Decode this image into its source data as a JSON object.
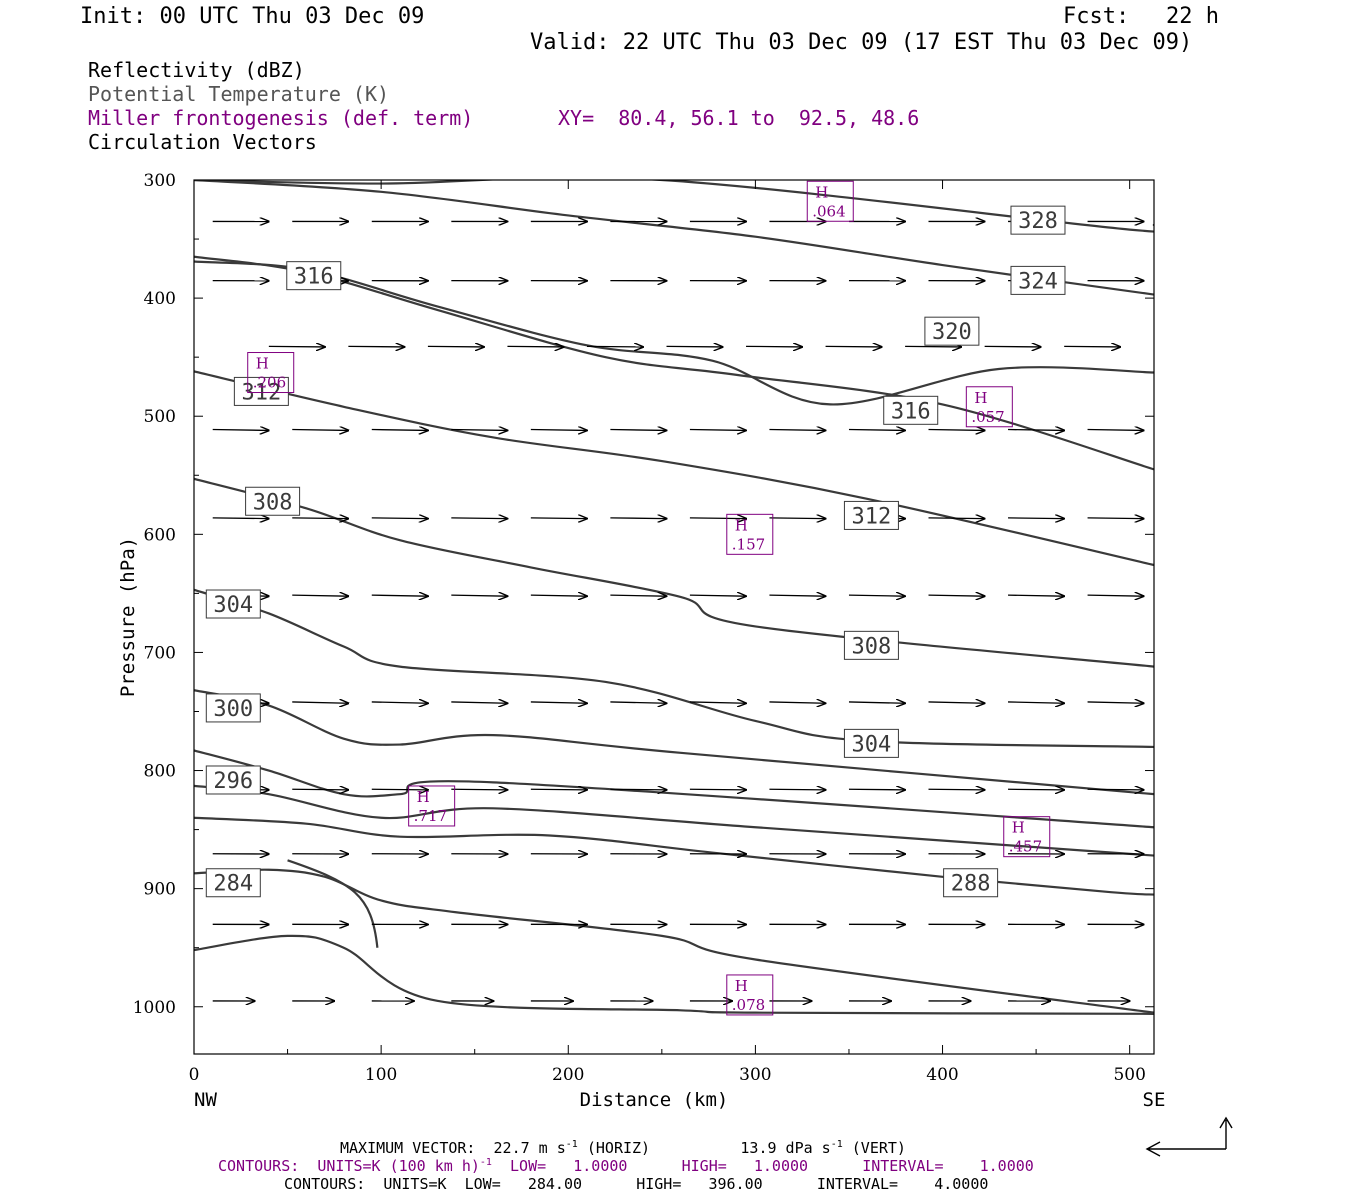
{
  "header": {
    "init": "Init: 00 UTC Thu 03 Dec 09",
    "fcst_label": "Fcst:",
    "fcst_value": "22 h",
    "valid": "Valid: 22 UTC Thu 03 Dec 09 (17 EST Thu 03 Dec 09)"
  },
  "legend": {
    "line1": "Reflectivity (dBZ)",
    "line2": "Potential Temperature (K)",
    "line3": "Miller frontogenesis (def. term)",
    "xy": "XY=  80.4, 56.1 to  92.5, 48.6",
    "line4": "Circulation Vectors"
  },
  "footer": {
    "max_vector_label": "MAXIMUM VECTOR:",
    "max_horiz": "22.7 m s",
    "max_horiz_sup": "-1",
    "max_horiz_tail": "(HORIZ)",
    "max_vert": "13.9 dPa s",
    "max_vert_sup": "-1",
    "max_vert_tail": "(VERT)",
    "contours1_a": "CONTOURS:  UNITS=K (100 km h)",
    "contours1_sup": "-1",
    "contours1_b": "  LOW=   1.0000      HIGH=   1.0000      INTERVAL=    1.0000",
    "contours2": "CONTOURS:  UNITS=K  LOW=   284.00      HIGH=   396.00      INTERVAL=    4.0000"
  },
  "colors": {
    "theta": "#3a3a3a",
    "fronto": "#800080",
    "vector": "#000000",
    "axis": "#000000"
  },
  "chart_data": {
    "type": "cross-section",
    "xlabel": "Distance (km)",
    "ylabel": "Pressure (hPa)",
    "xlim": [
      0,
      513
    ],
    "ylim": [
      1040,
      300
    ],
    "x_ticks": [
      0,
      100,
      200,
      300,
      400,
      500
    ],
    "y_ticks": [
      300,
      400,
      500,
      600,
      700,
      800,
      900,
      1000
    ],
    "x_left_label": "NW",
    "x_right_label": "SE",
    "theta_contours": [
      {
        "level": 328,
        "label": "328",
        "label_at": [
          451,
          334
        ],
        "points": [
          [
            0,
            300
          ],
          [
            100,
            303
          ],
          [
            250,
            300
          ],
          [
            500,
            342
          ],
          [
            513,
            338
          ]
        ]
      },
      {
        "level": 324,
        "label": "324",
        "label_at": [
          451,
          385
        ],
        "points": [
          [
            0,
            300
          ],
          [
            100,
            310
          ],
          [
            200,
            330
          ],
          [
            300,
            348
          ],
          [
            400,
            372
          ],
          [
            513,
            397
          ]
        ]
      },
      {
        "level": 320,
        "label": "320",
        "label_at": [
          405,
          428
        ],
        "points": [
          [
            0,
            369
          ],
          [
            60,
            376
          ],
          [
            130,
            407
          ],
          [
            210,
            440
          ],
          [
            277,
            453
          ],
          [
            340,
            490
          ],
          [
            430,
            460
          ],
          [
            513,
            463
          ]
        ]
      },
      {
        "level": 316,
        "label": "316",
        "label_at": [
          64,
          381
        ],
        "points": [
          [
            0,
            365
          ],
          [
            60,
            378
          ],
          [
            130,
            410
          ],
          [
            220,
            450
          ],
          [
            290,
            465
          ],
          [
            400,
            490
          ],
          [
            513,
            545
          ]
        ]
      },
      {
        "level": 316,
        "label": "316",
        "label_at": [
          383,
          495
        ],
        "points": []
      },
      {
        "level": 312,
        "label": "312",
        "label_at": [
          36,
          479
        ],
        "points": [
          [
            0,
            462
          ],
          [
            80,
            492
          ],
          [
            160,
            518
          ],
          [
            250,
            538
          ],
          [
            360,
            570
          ],
          [
            513,
            626
          ]
        ]
      },
      {
        "level": 312,
        "label": "312",
        "label_at": [
          362,
          584
        ],
        "points": []
      },
      {
        "level": 308,
        "label": "308",
        "label_at": [
          42,
          572
        ],
        "points": [
          [
            0,
            553
          ],
          [
            60,
            578
          ],
          [
            110,
            605
          ],
          [
            180,
            628
          ],
          [
            260,
            653
          ],
          [
            300,
            678
          ],
          [
            513,
            712
          ]
        ]
      },
      {
        "level": 308,
        "label": "308",
        "label_at": [
          362,
          694
        ],
        "points": []
      },
      {
        "level": 304,
        "label": "304",
        "label_at": [
          21,
          659
        ],
        "points": [
          [
            0,
            647
          ],
          [
            40,
            667
          ],
          [
            80,
            695
          ],
          [
            110,
            712
          ],
          [
            220,
            725
          ],
          [
            300,
            758
          ],
          [
            360,
            775
          ],
          [
            513,
            780
          ]
        ]
      },
      {
        "level": 304,
        "label": "304",
        "label_at": [
          362,
          777
        ],
        "points": []
      },
      {
        "level": 300,
        "label": "300",
        "label_at": [
          21,
          747
        ],
        "points": [
          [
            0,
            732
          ],
          [
            40,
            745
          ],
          [
            80,
            773
          ],
          [
            110,
            778
          ],
          [
            160,
            770
          ],
          [
            260,
            785
          ],
          [
            513,
            820
          ]
        ]
      },
      {
        "level": 296,
        "label": "296",
        "label_at": [
          21,
          808
        ],
        "points": [
          [
            0,
            783
          ],
          [
            40,
            800
          ],
          [
            80,
            820
          ],
          [
            110,
            820
          ],
          [
            160,
            810
          ],
          [
            513,
            848
          ]
        ]
      },
      {
        "level": 292,
        "label": "",
        "label_at": null,
        "points": [
          [
            0,
            813
          ],
          [
            40,
            820
          ],
          [
            100,
            840
          ],
          [
            160,
            832
          ],
          [
            300,
            848
          ],
          [
            513,
            872
          ]
        ]
      },
      {
        "level": 288,
        "label": "288",
        "label_at": [
          415,
          895
        ],
        "points": [
          [
            0,
            840
          ],
          [
            60,
            845
          ],
          [
            110,
            856
          ],
          [
            190,
            855
          ],
          [
            280,
            870
          ],
          [
            400,
            890
          ],
          [
            490,
            903
          ],
          [
            513,
            905
          ]
        ]
      },
      {
        "level": 284,
        "label": "284",
        "label_at": [
          21,
          895
        ],
        "points": [
          [
            0,
            887
          ],
          [
            40,
            884
          ],
          [
            70,
            890
          ],
          [
            100,
            910
          ],
          [
            140,
            920
          ],
          [
            250,
            940
          ],
          [
            300,
            960
          ],
          [
            513,
            1005
          ]
        ]
      },
      {
        "level": 280,
        "label": "",
        "label_at": null,
        "points": [
          [
            0,
            952
          ],
          [
            50,
            940
          ],
          [
            80,
            950
          ],
          [
            130,
            995
          ],
          [
            260,
            1003
          ],
          [
            300,
            1005
          ],
          [
            513,
            1006
          ]
        ]
      }
    ],
    "frontogenesis_maxima": [
      {
        "label": "H",
        "value": ".064",
        "x": 340,
        "p": 318
      },
      {
        "label": "H",
        "value": ".206",
        "x": 41,
        "p": 463
      },
      {
        "label": "H",
        "value": ".057",
        "x": 425,
        "p": 492
      },
      {
        "label": "H",
        "value": ".157",
        "x": 297,
        "p": 600
      },
      {
        "label": "H",
        "value": ".717",
        "x": 127,
        "p": 830
      },
      {
        "label": "H",
        "value": ".457",
        "x": 445,
        "p": 856
      },
      {
        "label": "H",
        "value": ".078",
        "x": 297,
        "p": 990
      }
    ],
    "vector_rows": [
      {
        "p": 335,
        "u": 0.8,
        "v": -0.02,
        "x_start": 10
      },
      {
        "p": 385,
        "u": 0.8,
        "v": -0.05,
        "x_start": 10
      },
      {
        "p": 440,
        "u": 0.8,
        "v": -0.2,
        "x_start": 40
      },
      {
        "p": 510,
        "u": 0.8,
        "v": -0.3,
        "x_start": 10
      },
      {
        "p": 585,
        "u": 0.8,
        "v": -0.25,
        "x_start": 10
      },
      {
        "p": 650,
        "u": 0.8,
        "v": -0.35,
        "x_start": 10
      },
      {
        "p": 740,
        "u": 0.8,
        "v": -0.45,
        "x_start": 10
      },
      {
        "p": 815,
        "u": 0.8,
        "v": -0.2,
        "x_start": 10
      },
      {
        "p": 870,
        "u": 0.8,
        "v": -0.1,
        "x_start": 10
      },
      {
        "p": 930,
        "u": 0.8,
        "v": -0.05,
        "x_start": 10
      },
      {
        "p": 995,
        "u": 0.6,
        "v": -0.02,
        "x_start": 10
      }
    ]
  }
}
